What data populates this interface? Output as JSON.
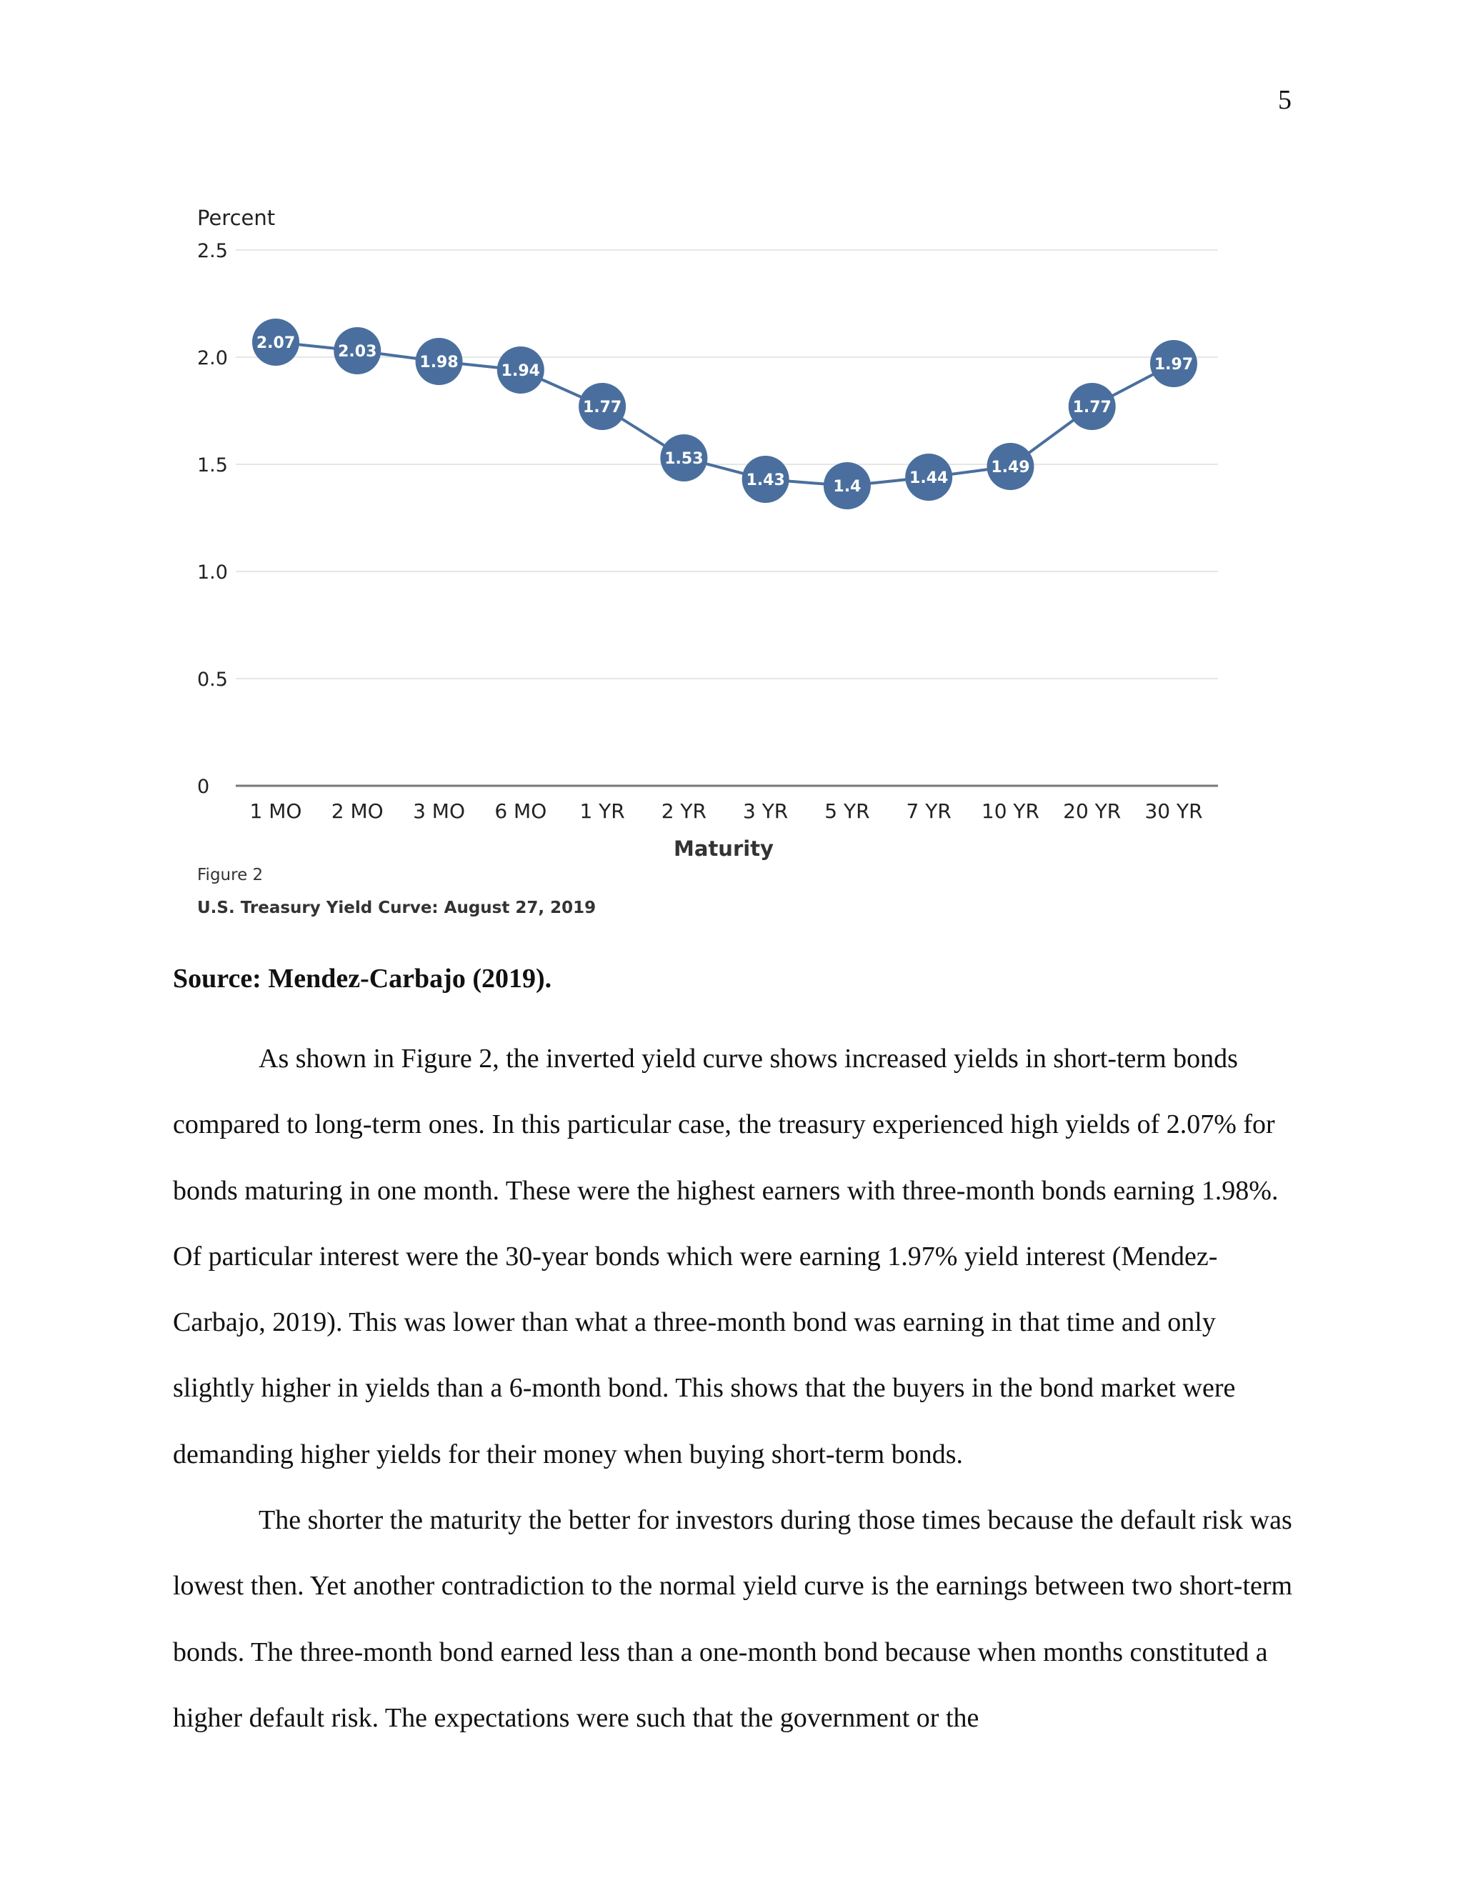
{
  "page_number": "5",
  "figure": {
    "label": "Figure 2",
    "caption": "U.S. Treasury Yield Curve: August 27, 2019"
  },
  "source_line": "Source: Mendez-Carbajo (2019).",
  "paragraphs": [
    "As shown in Figure 2, the inverted yield curve shows increased yields in short-term bonds compared to long-term ones. In this particular case, the treasury experienced high yields of 2.07% for bonds maturing in one month. These were the highest earners with three-month bonds earning 1.98%. Of particular interest were the 30-year bonds which were earning 1.97% yield interest (Mendez-Carbajo, 2019). This was lower than what a three-month bond was earning in that time and only slightly higher in yields than a 6-month bond. This shows that the buyers in the bond market were demanding higher yields for their money when buying short-term bonds.",
    "The shorter the maturity the better for investors during those times because the default risk was lowest then. Yet another contradiction to the normal yield curve is the earnings between two short-term bonds. The three-month bond earned less than a one-month bond because when months constituted a higher default risk. The expectations were such that the government or the"
  ],
  "chart_data": {
    "type": "line",
    "ylabel": "Percent",
    "xlabel": "Maturity",
    "categories": [
      "1 MO",
      "2 MO",
      "3 MO",
      "6 MO",
      "1 YR",
      "2 YR",
      "3 YR",
      "5 YR",
      "7 YR",
      "10 YR",
      "20 YR",
      "30 YR"
    ],
    "values": [
      2.07,
      2.03,
      1.98,
      1.94,
      1.77,
      1.53,
      1.43,
      1.4,
      1.44,
      1.49,
      1.77,
      1.97
    ],
    "data_labels": [
      "2.07",
      "2.03",
      "1.98",
      "1.94",
      "1.77",
      "1.53",
      "1.43",
      "1.4",
      "1.44",
      "1.49",
      "1.77",
      "1.97"
    ],
    "y_ticks": [
      "0",
      "0.5",
      "1.0",
      "1.5",
      "2.0",
      "2.5"
    ],
    "ylim": [
      0,
      2.5
    ],
    "grid": true,
    "legend": "none",
    "colors": {
      "series": "#4a6f9e",
      "grid": "#e6e6e6",
      "axis": "#777777",
      "text": "#222222"
    }
  }
}
